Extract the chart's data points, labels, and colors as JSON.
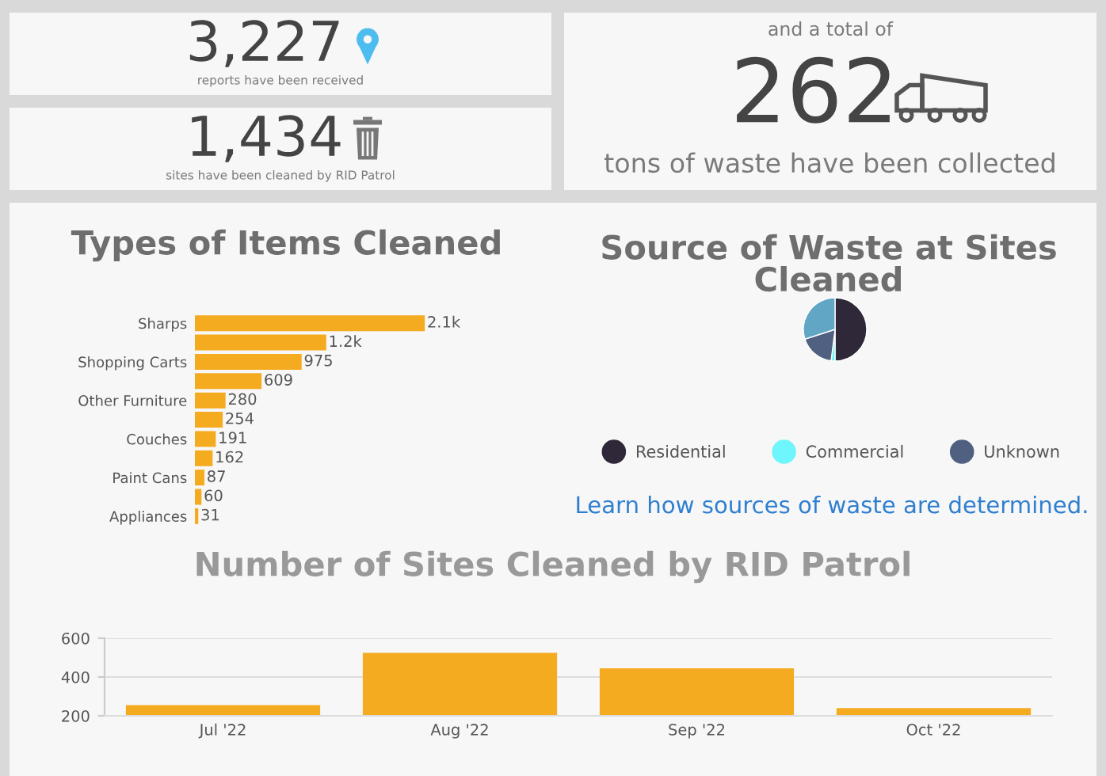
{
  "chart_data": [
    {
      "type": "other",
      "title": "3,227",
      "annotations": [
        "reports have been received"
      ]
    },
    {
      "type": "other",
      "title": "1,434",
      "annotations": [
        "sites have been cleaned by RID Patrol"
      ]
    },
    {
      "type": "other",
      "title": "262",
      "annotations": [
        "and a total of",
        "tons of waste have been collected"
      ]
    },
    {
      "type": "bar",
      "orientation": "horizontal",
      "title": "Types of Items Cleaned",
      "tick_labels": "y",
      "categories": [
        "Sharps",
        null,
        "Shopping Carts",
        null,
        "Other Furniture",
        null,
        "Couches",
        null,
        "Paint Cans",
        null,
        "Appliances"
      ],
      "values": [
        2100,
        1200,
        975,
        609,
        280,
        254,
        191,
        162,
        87,
        60,
        31
      ],
      "value_labels": [
        "2.1k",
        "1.2k",
        "975",
        "609",
        "280",
        "254",
        "191",
        "162",
        "87",
        "60",
        "31"
      ],
      "color": "#f5ab1f"
    },
    {
      "type": "pie",
      "title": "Source of Waste at Sites Cleaned",
      "legend": "bottom",
      "categories": [
        "Residential",
        "Commercial",
        "Unknown",
        null
      ],
      "values": [
        50,
        2,
        18,
        30
      ],
      "colors": [
        "#2e2838",
        "#6ff5fc",
        "#506080",
        "#62a6c6"
      ],
      "annotations": [
        "Learn how sources of waste are determined."
      ]
    },
    {
      "type": "bar",
      "title": "Number of Sites Cleaned by RID Patrol",
      "grid": "y",
      "categories": [
        "Jul '22",
        "Aug '22",
        "Sep '22",
        "Oct '22"
      ],
      "values": [
        255,
        525,
        445,
        240
      ],
      "color": "#f5ab1f",
      "ylim": [
        200,
        600
      ],
      "yticks": [
        200,
        400,
        600
      ]
    }
  ]
}
